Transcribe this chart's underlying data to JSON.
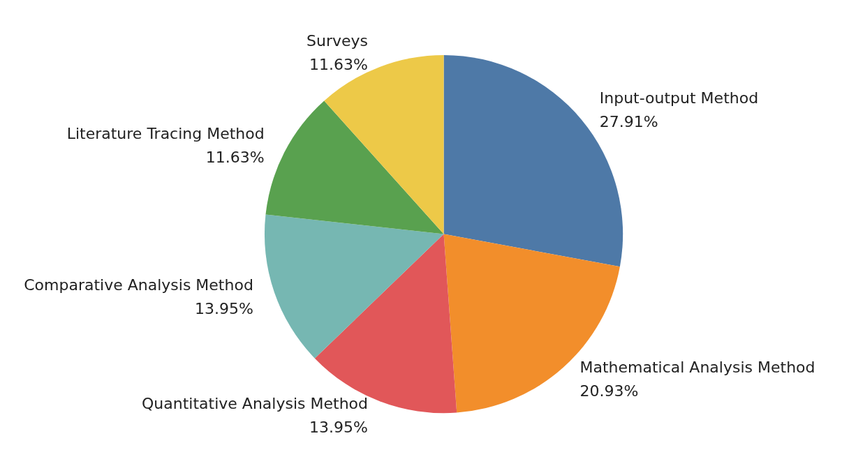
{
  "chart_data": {
    "type": "pie",
    "categories": [
      "Input-output Method",
      "Mathematical Analysis Method",
      "Quantitative Analysis Method",
      "Comparative Analysis Method",
      "Literature Tracing Method",
      "Surveys"
    ],
    "values": [
      27.91,
      20.93,
      13.95,
      13.95,
      11.63,
      11.63
    ],
    "value_labels": [
      "27.91%",
      "20.93%",
      "13.95%",
      "13.95%",
      "11.63%",
      "11.63%"
    ],
    "colors": [
      "#4e79a7",
      "#f28e2b",
      "#e15759",
      "#76b7b2",
      "#59a14f",
      "#edc948"
    ],
    "legend": false
  }
}
